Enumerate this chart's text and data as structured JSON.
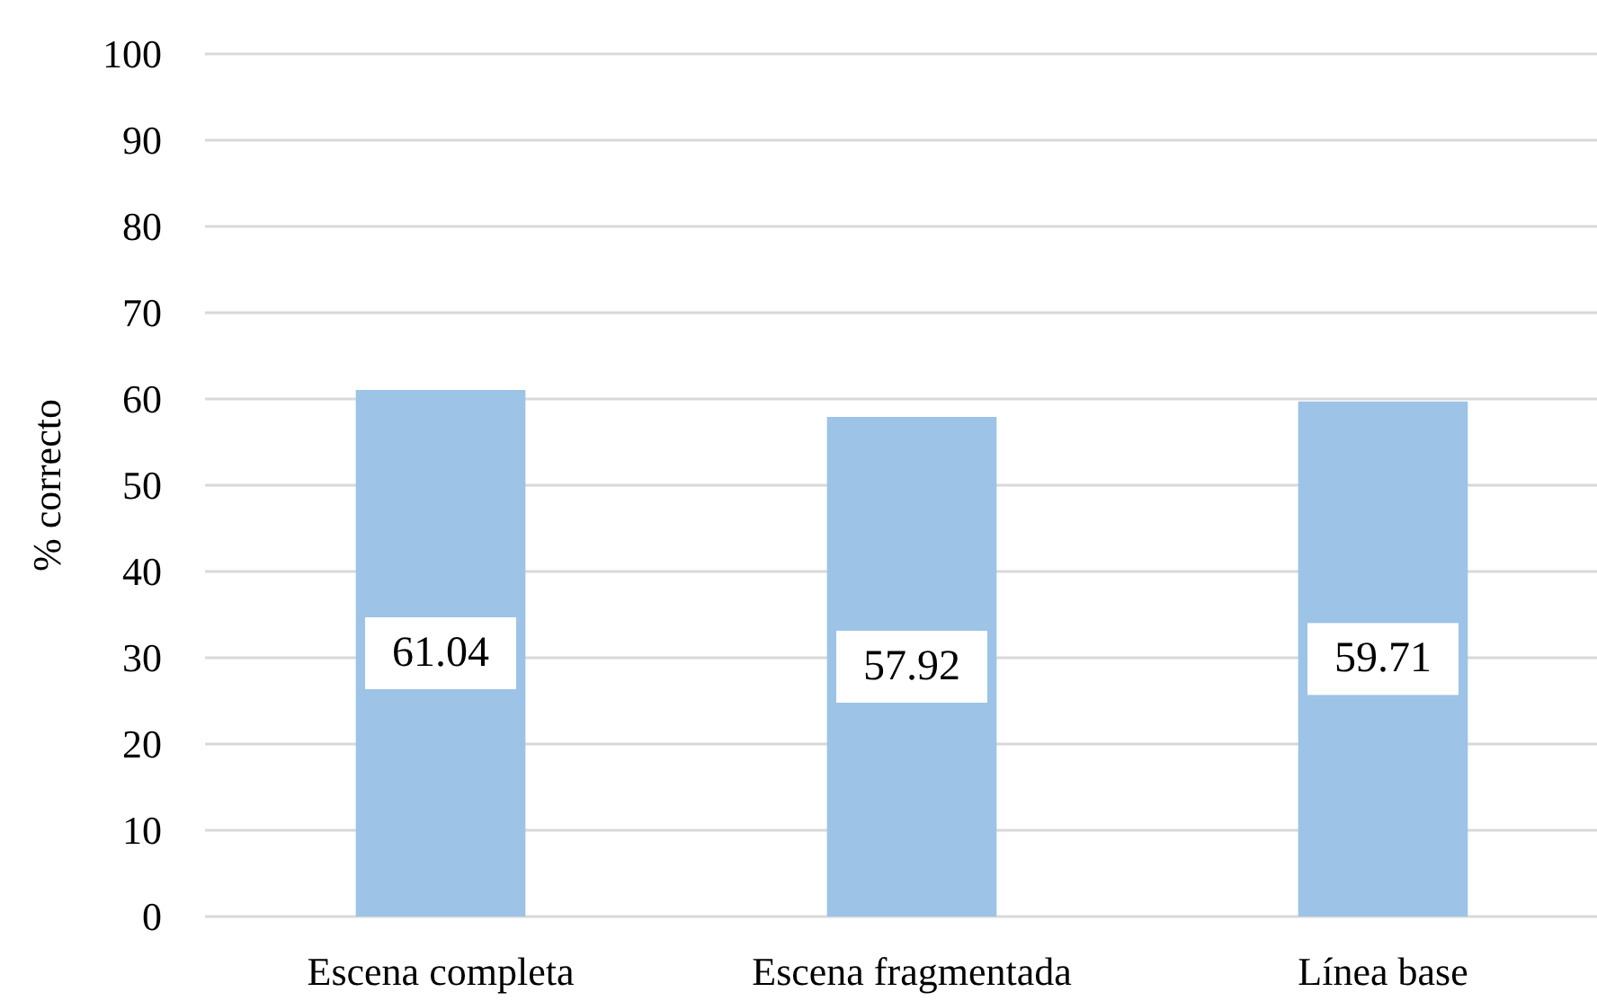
{
  "chart_data": {
    "type": "bar",
    "ylabel": "% correcto",
    "categories": [
      "Escena completa",
      "Escena fragmentada",
      "Línea base"
    ],
    "values": [
      61.04,
      57.92,
      59.71
    ],
    "color": "#9dc3e6",
    "ylim": [
      0,
      100
    ],
    "yticks": [
      0,
      10,
      20,
      30,
      40,
      50,
      60,
      70,
      80,
      90,
      100
    ],
    "grid": "y",
    "data_labels": true
  }
}
